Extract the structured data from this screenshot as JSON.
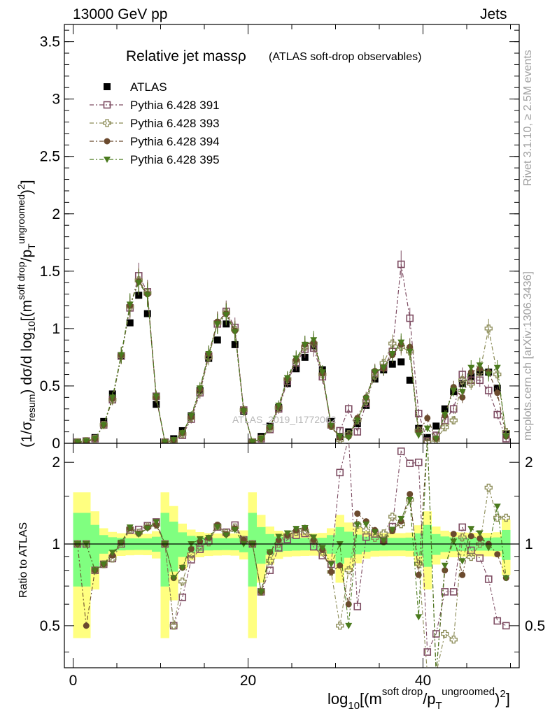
{
  "header": {
    "left": "13000 GeV pp",
    "right": "Jets"
  },
  "side_text": {
    "rivet": "Rivet 3.1.10, ≥ 2.5M events",
    "mcplots": "mcplots.cern.ch [arXiv:1306.3436]"
  },
  "watermark": "ATLAS_2019_I1772062",
  "chart_data": [
    {
      "type": "scatter",
      "panel": "main",
      "title": "Relative jet massρ",
      "subtitle": "(ATLAS soft-drop observables)",
      "ylabel": "(1/σresum) dσ/d log10[(m^soft drop/pT^ungroomed)2]",
      "xlim": [
        -1,
        51
      ],
      "ylim": [
        0,
        3.65
      ],
      "x_ticks": [
        "0",
        "20",
        "40"
      ],
      "y_ticks": [
        "0",
        "0.5",
        "1",
        "1.5",
        "2",
        "2.5",
        "3",
        "3.5"
      ],
      "legend_position": "top-left",
      "x": [
        0.5,
        1.5,
        2.5,
        3.5,
        4.5,
        5.5,
        6.5,
        7.5,
        8.5,
        9.5,
        10.5,
        11.5,
        12.5,
        13.5,
        14.5,
        15.5,
        16.5,
        17.5,
        18.5,
        19.5,
        20.5,
        21.5,
        22.5,
        23.5,
        24.5,
        25.5,
        26.5,
        27.5,
        28.5,
        29.5,
        30.5,
        31.5,
        32.5,
        33.5,
        34.5,
        35.5,
        36.5,
        37.5,
        38.5,
        39.5,
        40.5,
        41.5,
        42.5,
        43.5,
        44.5,
        45.5,
        46.5,
        47.5,
        48.5,
        49.5
      ],
      "series": [
        {
          "name": "ATLAS",
          "color": "#000000",
          "marker": "filled-square",
          "values": [
            0.01,
            0.02,
            0.05,
            0.19,
            0.43,
            0.76,
            1.05,
            1.29,
            1.13,
            0.34,
            0.01,
            0.04,
            0.11,
            0.24,
            0.46,
            0.74,
            0.9,
            1.04,
            0.86,
            0.28,
            0.01,
            0.06,
            0.15,
            0.31,
            0.52,
            0.65,
            0.75,
            0.85,
            0.64,
            0.19,
            0.06,
            0.1,
            0.17,
            0.33,
            0.56,
            0.64,
            0.69,
            0.71,
            0.55,
            0.13,
            0.05,
            0.15,
            0.3,
            0.45,
            0.52,
            0.58,
            0.62,
            0.62,
            0.48,
            0.08
          ]
        },
        {
          "name": "Pythia 6.428 391",
          "color": "#7d4c62",
          "marker": "open-square",
          "values": [
            0.01,
            0.02,
            0.04,
            0.16,
            0.38,
            0.76,
            1.18,
            1.46,
            1.32,
            0.41,
            0.01,
            0.02,
            0.07,
            0.21,
            0.44,
            0.76,
            1.04,
            1.15,
            1.01,
            0.29,
            0.01,
            0.04,
            0.12,
            0.3,
            0.54,
            0.7,
            0.82,
            0.83,
            0.58,
            0.16,
            0.11,
            0.3,
            0.1,
            0.35,
            0.61,
            0.66,
            0.8,
            1.56,
            1.09,
            0.26,
            0.02,
            0.07,
            0.2,
            0.3,
            0.6,
            0.55,
            0.55,
            0.46,
            0.25,
            0.04
          ]
        },
        {
          "name": "Pythia 6.428 393",
          "color": "#8a8a55",
          "marker": "open-cross",
          "values": [
            0.01,
            0.02,
            0.04,
            0.16,
            0.38,
            0.76,
            1.19,
            1.42,
            1.31,
            0.4,
            0.01,
            0.02,
            0.08,
            0.22,
            0.45,
            0.75,
            1.05,
            1.14,
            0.99,
            0.29,
            0.01,
            0.04,
            0.13,
            0.31,
            0.56,
            0.72,
            0.84,
            0.87,
            0.6,
            0.15,
            0.03,
            0.08,
            0.2,
            0.37,
            0.59,
            0.7,
            0.87,
            0.84,
            0.8,
            0.11,
            0.01,
            0.03,
            0.14,
            0.2,
            0.55,
            0.52,
            0.62,
            1.0,
            0.6,
            0.1
          ]
        },
        {
          "name": "Pythia 6.428 394",
          "color": "#6b4a2e",
          "marker": "filled-circle",
          "values": [
            0.01,
            0.01,
            0.04,
            0.16,
            0.39,
            0.77,
            1.2,
            1.41,
            1.3,
            0.4,
            0.01,
            0.03,
            0.09,
            0.23,
            0.47,
            0.78,
            1.06,
            1.13,
            0.98,
            0.29,
            0.01,
            0.04,
            0.14,
            0.32,
            0.56,
            0.73,
            0.86,
            0.88,
            0.61,
            0.15,
            0.05,
            0.06,
            0.22,
            0.4,
            0.63,
            0.65,
            0.77,
            0.86,
            0.84,
            0.1,
            0.22,
            0.04,
            0.24,
            0.49,
            0.4,
            0.62,
            0.65,
            0.62,
            0.44,
            0.06
          ]
        },
        {
          "name": "Pythia 6.428 395",
          "color": "#4a7a1e",
          "marker": "filled-triangle-down",
          "values": [
            0.01,
            0.02,
            0.04,
            0.16,
            0.4,
            0.77,
            1.21,
            1.4,
            1.29,
            0.41,
            0.01,
            0.03,
            0.09,
            0.24,
            0.48,
            0.78,
            1.04,
            1.12,
            0.97,
            0.28,
            0.01,
            0.04,
            0.14,
            0.33,
            0.57,
            0.74,
            0.86,
            0.9,
            0.62,
            0.16,
            0.06,
            0.05,
            0.2,
            0.39,
            0.62,
            0.66,
            0.78,
            0.88,
            0.8,
            0.07,
            0.13,
            0.04,
            0.25,
            0.46,
            0.45,
            0.66,
            0.68,
            0.6,
            0.66,
            0.06
          ]
        }
      ]
    },
    {
      "type": "scatter",
      "panel": "ratio",
      "ylabel": "Ratio to ATLAS",
      "xlabel": "log10[(m^soft drop/pT^ungroomed)2]",
      "xlim": [
        -1,
        51
      ],
      "ylim": [
        0.35,
        2.35
      ],
      "y_scale": "log",
      "y_ticks": [
        "0.5",
        "1",
        "2"
      ],
      "x_ticks": [
        "0",
        "20",
        "40"
      ],
      "reference_band_1sigma": "#80ff80",
      "reference_band_2sigma": "#ffff80"
    }
  ]
}
